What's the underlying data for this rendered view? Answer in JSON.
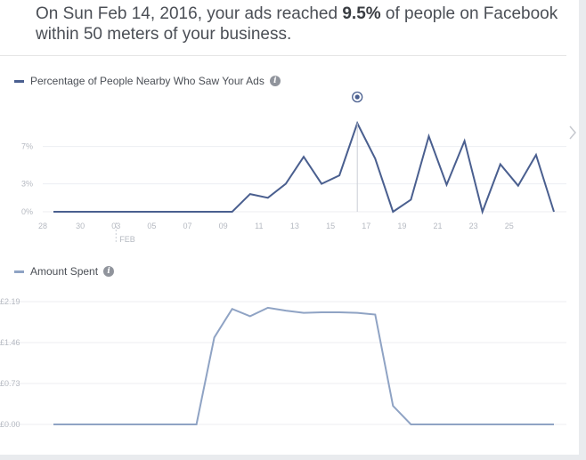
{
  "headline": {
    "prefix": "On Sun Feb 14, 2016, your ads reached ",
    "highlight": "9.5%",
    "suffix": " of people on Facebook within 50 meters of your business."
  },
  "colors": {
    "reach_series": "#4a5f8f",
    "spend_series": "#8fa3c4",
    "grid": "#eceef2",
    "axis_text": "#b5b9c1"
  },
  "icons": {
    "info": "info-icon",
    "marker": "selected-point-icon"
  },
  "x_axis": {
    "tick_labels": [
      "28",
      "30",
      "03",
      "05",
      "07",
      "09",
      "11",
      "13",
      "15",
      "17",
      "19",
      "21",
      "23",
      "25"
    ],
    "month_label": "FEB"
  },
  "chart_data": [
    {
      "type": "line",
      "title": "Percentage of People Nearby Who Saw Your Ads",
      "y_tick_labels": [
        "0%",
        "3%",
        "7%"
      ],
      "y_ticks": [
        0,
        3,
        7
      ],
      "ylim": [
        0,
        10.5
      ],
      "x": [
        "Jan 28",
        "Jan 29",
        "Jan 30",
        "Jan 31",
        "Feb 01",
        "Feb 02",
        "Feb 03",
        "Feb 04",
        "Feb 05",
        "Feb 06",
        "Feb 07",
        "Feb 08",
        "Feb 09",
        "Feb 10",
        "Feb 11",
        "Feb 12",
        "Feb 13",
        "Feb 14",
        "Feb 15",
        "Feb 16",
        "Feb 17",
        "Feb 18",
        "Feb 19",
        "Feb 20",
        "Feb 21",
        "Feb 22",
        "Feb 23",
        "Feb 24",
        "Feb 25"
      ],
      "values": [
        0,
        0,
        0,
        0,
        0,
        0,
        0,
        0,
        0,
        0,
        0,
        1.9,
        1.5,
        3.0,
        5.9,
        3.0,
        3.9,
        9.5,
        5.7,
        0,
        1.3,
        8.1,
        2.9,
        7.6,
        0,
        5.1,
        2.8,
        6.1,
        0
      ],
      "highlighted_x": "Feb 14",
      "grid": true
    },
    {
      "type": "line",
      "title": "Amount Spent",
      "y_tick_labels": [
        "£0.00",
        "£0.73",
        "£1.46",
        "£2.19"
      ],
      "y_ticks": [
        0,
        0.73,
        1.46,
        2.19
      ],
      "ylim": [
        0,
        2.19
      ],
      "x": [
        "Jan 28",
        "Jan 29",
        "Jan 30",
        "Jan 31",
        "Feb 01",
        "Feb 02",
        "Feb 03",
        "Feb 04",
        "Feb 05",
        "Feb 06",
        "Feb 07",
        "Feb 08",
        "Feb 09",
        "Feb 10",
        "Feb 11",
        "Feb 12",
        "Feb 13",
        "Feb 14",
        "Feb 15",
        "Feb 16",
        "Feb 17",
        "Feb 18",
        "Feb 19",
        "Feb 20",
        "Feb 21",
        "Feb 22",
        "Feb 23",
        "Feb 24",
        "Feb 25"
      ],
      "values": [
        0,
        0,
        0,
        0,
        0,
        0,
        0,
        0,
        0,
        1.55,
        2.06,
        1.93,
        2.08,
        2.03,
        1.99,
        2.0,
        2.0,
        1.99,
        1.96,
        0.33,
        0,
        0,
        0,
        0,
        0,
        0,
        0,
        0,
        0
      ],
      "grid": true
    }
  ]
}
